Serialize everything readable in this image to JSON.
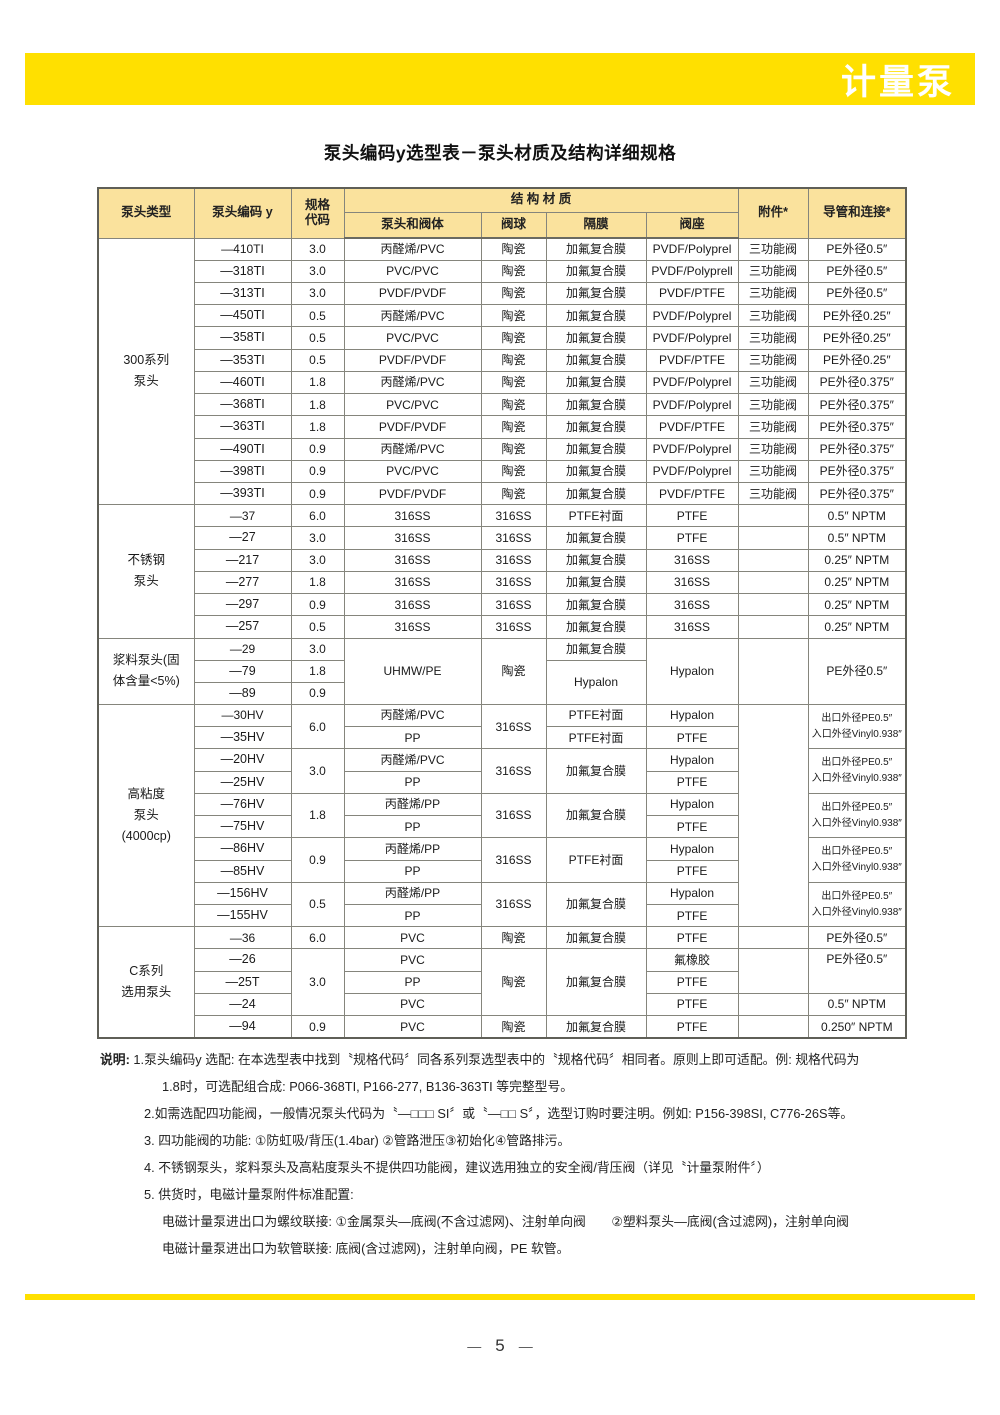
{
  "page": {
    "banner_title": "计量泵",
    "title": "泵头编码y选型表－泵头材质及结构详细规格",
    "page_number": "5",
    "page_dash": "—"
  },
  "colors": {
    "banner_yellow": "#FFE000",
    "table_header_bg": "#FAE29D",
    "border": "#85857C"
  },
  "table": {
    "headers": {
      "pump_type": "泵头类型",
      "code": "泵头编码 y",
      "spec_code": "规格\n代码",
      "structure_group": "结 构 材 质",
      "head_valve_body": "泵头和阀体",
      "valve_ball": "阀球",
      "diaphragm": "隔膜",
      "valve_seat": "阀座",
      "accessory": "附件*",
      "tubing": "导管和连接*"
    },
    "rows": [
      [
        {
          "t": "300系列\n泵头",
          "rs": 12
        },
        {
          "t": "—410TI"
        },
        {
          "t": "3.0"
        },
        {
          "t": "丙醛烯/PVC"
        },
        {
          "t": "陶瓷"
        },
        {
          "t": "加氟复合膜"
        },
        {
          "t": "PVDF/Polyprel"
        },
        {
          "t": "三功能阀"
        },
        {
          "t": "PE外径0.5″"
        }
      ],
      [
        {
          "t": "—318TI"
        },
        {
          "t": "3.0"
        },
        {
          "t": "PVC/PVC"
        },
        {
          "t": "陶瓷"
        },
        {
          "t": "加氟复合膜"
        },
        {
          "t": "PVDF/Polyprell"
        },
        {
          "t": "三功能阀"
        },
        {
          "t": "PE外径0.5″"
        }
      ],
      [
        {
          "t": "—313TI"
        },
        {
          "t": "3.0"
        },
        {
          "t": "PVDF/PVDF"
        },
        {
          "t": "陶瓷"
        },
        {
          "t": "加氟复合膜"
        },
        {
          "t": "PVDF/PTFE"
        },
        {
          "t": "三功能阀"
        },
        {
          "t": "PE外径0.5″"
        }
      ],
      [
        {
          "t": "—450TI"
        },
        {
          "t": "0.5"
        },
        {
          "t": "丙醛烯/PVC"
        },
        {
          "t": "陶瓷"
        },
        {
          "t": "加氟复合膜"
        },
        {
          "t": "PVDF/Polyprel"
        },
        {
          "t": "三功能阀"
        },
        {
          "t": "PE外径0.25″"
        }
      ],
      [
        {
          "t": "—358TI"
        },
        {
          "t": "0.5"
        },
        {
          "t": "PVC/PVC"
        },
        {
          "t": "陶瓷"
        },
        {
          "t": "加氟复合膜"
        },
        {
          "t": "PVDF/Polyprel"
        },
        {
          "t": "三功能阀"
        },
        {
          "t": "PE外径0.25″"
        }
      ],
      [
        {
          "t": "—353TI"
        },
        {
          "t": "0.5"
        },
        {
          "t": "PVDF/PVDF"
        },
        {
          "t": "陶瓷"
        },
        {
          "t": "加氟复合膜"
        },
        {
          "t": "PVDF/PTFE"
        },
        {
          "t": "三功能阀"
        },
        {
          "t": "PE外径0.25″"
        }
      ],
      [
        {
          "t": "—460TI"
        },
        {
          "t": "1.8"
        },
        {
          "t": "丙醛烯/PVC"
        },
        {
          "t": "陶瓷"
        },
        {
          "t": "加氟复合膜"
        },
        {
          "t": "PVDF/Polyprel"
        },
        {
          "t": "三功能阀"
        },
        {
          "t": "PE外径0.375″"
        }
      ],
      [
        {
          "t": "—368TI"
        },
        {
          "t": "1.8"
        },
        {
          "t": "PVC/PVC"
        },
        {
          "t": "陶瓷"
        },
        {
          "t": "加氟复合膜"
        },
        {
          "t": "PVDF/Polyprel"
        },
        {
          "t": "三功能阀"
        },
        {
          "t": "PE外径0.375″"
        }
      ],
      [
        {
          "t": "—363TI"
        },
        {
          "t": "1.8"
        },
        {
          "t": "PVDF/PVDF"
        },
        {
          "t": "陶瓷"
        },
        {
          "t": "加氟复合膜"
        },
        {
          "t": "PVDF/PTFE"
        },
        {
          "t": "三功能阀"
        },
        {
          "t": "PE外径0.375″"
        }
      ],
      [
        {
          "t": "—490TI"
        },
        {
          "t": "0.9"
        },
        {
          "t": "丙醛烯/PVC"
        },
        {
          "t": "陶瓷"
        },
        {
          "t": "加氟复合膜"
        },
        {
          "t": "PVDF/Polyprel"
        },
        {
          "t": "三功能阀"
        },
        {
          "t": "PE外径0.375″"
        }
      ],
      [
        {
          "t": "—398TI"
        },
        {
          "t": "0.9"
        },
        {
          "t": "PVC/PVC"
        },
        {
          "t": "陶瓷"
        },
        {
          "t": "加氟复合膜"
        },
        {
          "t": "PVDF/Polyprel"
        },
        {
          "t": "三功能阀"
        },
        {
          "t": "PE外径0.375″"
        }
      ],
      [
        {
          "t": "—393TI"
        },
        {
          "t": "0.9"
        },
        {
          "t": "PVDF/PVDF"
        },
        {
          "t": "陶瓷"
        },
        {
          "t": "加氟复合膜"
        },
        {
          "t": "PVDF/PTFE"
        },
        {
          "t": "三功能阀"
        },
        {
          "t": "PE外径0.375″"
        }
      ],
      [
        {
          "t": "不锈钢\n泵头",
          "rs": 6
        },
        {
          "t": "—37"
        },
        {
          "t": "6.0"
        },
        {
          "t": "316SS"
        },
        {
          "t": "316SS"
        },
        {
          "t": "PTFE衬面"
        },
        {
          "t": "PTFE"
        },
        {
          "t": ""
        },
        {
          "t": "0.5″ NPTM"
        }
      ],
      [
        {
          "t": "—27"
        },
        {
          "t": "3.0"
        },
        {
          "t": "316SS"
        },
        {
          "t": "316SS"
        },
        {
          "t": "加氟复合膜"
        },
        {
          "t": "PTFE"
        },
        {
          "t": ""
        },
        {
          "t": "0.5″ NPTM"
        }
      ],
      [
        {
          "t": "—217"
        },
        {
          "t": "3.0"
        },
        {
          "t": "316SS"
        },
        {
          "t": "316SS"
        },
        {
          "t": "加氟复合膜"
        },
        {
          "t": "316SS"
        },
        {
          "t": ""
        },
        {
          "t": "0.25″ NPTM"
        }
      ],
      [
        {
          "t": "—277"
        },
        {
          "t": "1.8"
        },
        {
          "t": "316SS"
        },
        {
          "t": "316SS"
        },
        {
          "t": "加氟复合膜"
        },
        {
          "t": "316SS"
        },
        {
          "t": ""
        },
        {
          "t": "0.25″ NPTM"
        }
      ],
      [
        {
          "t": "—297"
        },
        {
          "t": "0.9"
        },
        {
          "t": "316SS"
        },
        {
          "t": "316SS"
        },
        {
          "t": "加氟复合膜"
        },
        {
          "t": "316SS"
        },
        {
          "t": ""
        },
        {
          "t": "0.25″ NPTM"
        }
      ],
      [
        {
          "t": "—257"
        },
        {
          "t": "0.5"
        },
        {
          "t": "316SS"
        },
        {
          "t": "316SS"
        },
        {
          "t": "加氟复合膜"
        },
        {
          "t": "316SS"
        },
        {
          "t": ""
        },
        {
          "t": "0.25″ NPTM"
        }
      ],
      [
        {
          "t": "浆料泵头(固\n体含量<5%)",
          "rs": 3
        },
        {
          "t": "—29"
        },
        {
          "t": "3.0"
        },
        {
          "t": "UHMW/PE",
          "rs": 3
        },
        {
          "t": "陶瓷",
          "rs": 3
        },
        {
          "t": "加氟复合膜"
        },
        {
          "t": "Hypalon",
          "rs": 3
        },
        {
          "t": "",
          "rs": 3
        },
        {
          "t": "PE外径0.5″",
          "rs": 3
        }
      ],
      [
        {
          "t": "—79"
        },
        {
          "t": "1.8"
        },
        {
          "t": "Hypalon",
          "rs": 2
        }
      ],
      [
        {
          "t": "—89"
        },
        {
          "t": "0.9"
        }
      ],
      [
        {
          "t": "高粘度\n泵头\n(4000cp)",
          "rs": 10
        },
        {
          "t": "—30HV"
        },
        {
          "t": "6.0",
          "rs": 2
        },
        {
          "t": "丙醛烯/PVC"
        },
        {
          "t": "316SS",
          "rs": 2
        },
        {
          "t": "PTFE衬面"
        },
        {
          "t": "Hypalon"
        },
        {
          "t": "",
          "rs": 10
        },
        {
          "t": "出口外径PE0.5″\n入口外径Vinyl0.938″",
          "rs": 2,
          "cls": "sm"
        }
      ],
      [
        {
          "t": "—35HV"
        },
        {
          "t": "PP"
        },
        {
          "t": "PTFE衬面"
        },
        {
          "t": "PTFE"
        }
      ],
      [
        {
          "t": "—20HV"
        },
        {
          "t": "3.0",
          "rs": 2
        },
        {
          "t": "丙醛烯/PVC"
        },
        {
          "t": "316SS",
          "rs": 2
        },
        {
          "t": "加氟复合膜",
          "rs": 2
        },
        {
          "t": "Hypalon"
        },
        {
          "t": "出口外径PE0.5″\n入口外径Vinyl0.938″",
          "rs": 2,
          "cls": "sm"
        }
      ],
      [
        {
          "t": "—25HV"
        },
        {
          "t": "PP"
        },
        {
          "t": "PTFE"
        }
      ],
      [
        {
          "t": "—76HV"
        },
        {
          "t": "1.8",
          "rs": 2
        },
        {
          "t": "丙醛烯/PP"
        },
        {
          "t": "316SS",
          "rs": 2
        },
        {
          "t": "加氟复合膜",
          "rs": 2
        },
        {
          "t": "Hypalon"
        },
        {
          "t": "出口外径PE0.5″\n入口外径Vinyl0.938″",
          "rs": 2,
          "cls": "sm"
        }
      ],
      [
        {
          "t": "—75HV"
        },
        {
          "t": "PP"
        },
        {
          "t": "PTFE"
        }
      ],
      [
        {
          "t": "—86HV"
        },
        {
          "t": "0.9",
          "rs": 2
        },
        {
          "t": "丙醛烯/PP"
        },
        {
          "t": "316SS",
          "rs": 2
        },
        {
          "t": "PTFE衬面",
          "rs": 2
        },
        {
          "t": "Hypalon"
        },
        {
          "t": "出口外径PE0.5″\n入口外径Vinyl0.938″",
          "rs": 2,
          "cls": "sm"
        }
      ],
      [
        {
          "t": "—85HV"
        },
        {
          "t": "PP"
        },
        {
          "t": "PTFE"
        }
      ],
      [
        {
          "t": "—156HV"
        },
        {
          "t": "0.5",
          "rs": 2
        },
        {
          "t": "丙醛烯/PP"
        },
        {
          "t": "316SS",
          "rs": 2
        },
        {
          "t": "加氟复合膜",
          "rs": 2
        },
        {
          "t": "Hypalon"
        },
        {
          "t": "出口外径PE0.5″\n入口外径Vinyl0.938″",
          "rs": 2,
          "cls": "sm"
        }
      ],
      [
        {
          "t": "—155HV"
        },
        {
          "t": "PP"
        },
        {
          "t": "PTFE"
        }
      ],
      [
        {
          "t": "C系列\n选用泵头",
          "rs": 5
        },
        {
          "t": "—36"
        },
        {
          "t": "6.0"
        },
        {
          "t": "PVC"
        },
        {
          "t": "陶瓷"
        },
        {
          "t": "加氟复合膜"
        },
        {
          "t": "PTFE"
        },
        {
          "t": ""
        },
        {
          "t": "PE外径0.5″"
        }
      ],
      [
        {
          "t": "—26"
        },
        {
          "t": "3.0",
          "rs": 3
        },
        {
          "t": "PVC"
        },
        {
          "t": "陶瓷",
          "rs": 3
        },
        {
          "t": "加氟复合膜",
          "rs": 3
        },
        {
          "t": "氟橡胶"
        },
        {
          "t": "",
          "rs": 2
        },
        {
          "t": "PE外径0.5″",
          "rs": 2,
          "cls": "vtop"
        }
      ],
      [
        {
          "t": "—25T"
        },
        {
          "t": "PP"
        },
        {
          "t": "PTFE"
        }
      ],
      [
        {
          "t": "—24"
        },
        {
          "t": "PVC"
        },
        {
          "t": "PTFE"
        },
        {
          "t": ""
        },
        {
          "t": "0.5″ NPTM"
        }
      ],
      [
        {
          "t": "—94"
        },
        {
          "t": "0.9"
        },
        {
          "t": "PVC"
        },
        {
          "t": "陶瓷"
        },
        {
          "t": "加氟复合膜"
        },
        {
          "t": "PTFE"
        },
        {
          "t": ""
        },
        {
          "t": "0.250″ NPTM"
        }
      ]
    ]
  },
  "notes": {
    "label": "说明:",
    "lines": [
      {
        "indent": 0,
        "with_label": true,
        "text": "1.泵头编码y 选配: 在本选型表中找到〝规格代码〞同各系列泵选型表中的〝规格代码〞相同者。原则上即可适配。例: 规格代码为"
      },
      {
        "indent": 2,
        "text": "1.8时，可选配组合成: P066-368TI, P166-277, B136-363TI 等完整型号。"
      },
      {
        "indent": 1,
        "text": "2.如需选配四功能阀，一般情况泵头代码为〝—□□□ SI〞或〝—□□ S〞，选型订购时要注明。例如: P156-398SI, C776-26S等。"
      },
      {
        "indent": 1,
        "text": "3. 四功能阀的功能: ①防虹吸/背压(1.4bar) ②管路泄压③初始化④管路排污。"
      },
      {
        "indent": 1,
        "text": "4. 不锈钢泵头，浆料泵头及高粘度泵头不提供四功能阀，建议选用独立的安全阀/背压阀（详见〝计量泵附件〞）"
      },
      {
        "indent": 1,
        "text": "5. 供货时，电磁计量泵附件标准配置:"
      },
      {
        "indent": 2,
        "text": "电磁计量泵进出口为螺纹联接: ①金属泵头—底阀(不含过滤网)、注射单向阀　　②塑料泵头—底阀(含过滤网)，注射单向阀"
      },
      {
        "indent": 2,
        "text": "电磁计量泵进出口为软管联接: 底阀(含过滤网)，注射单向阀，PE 软管。"
      }
    ]
  }
}
